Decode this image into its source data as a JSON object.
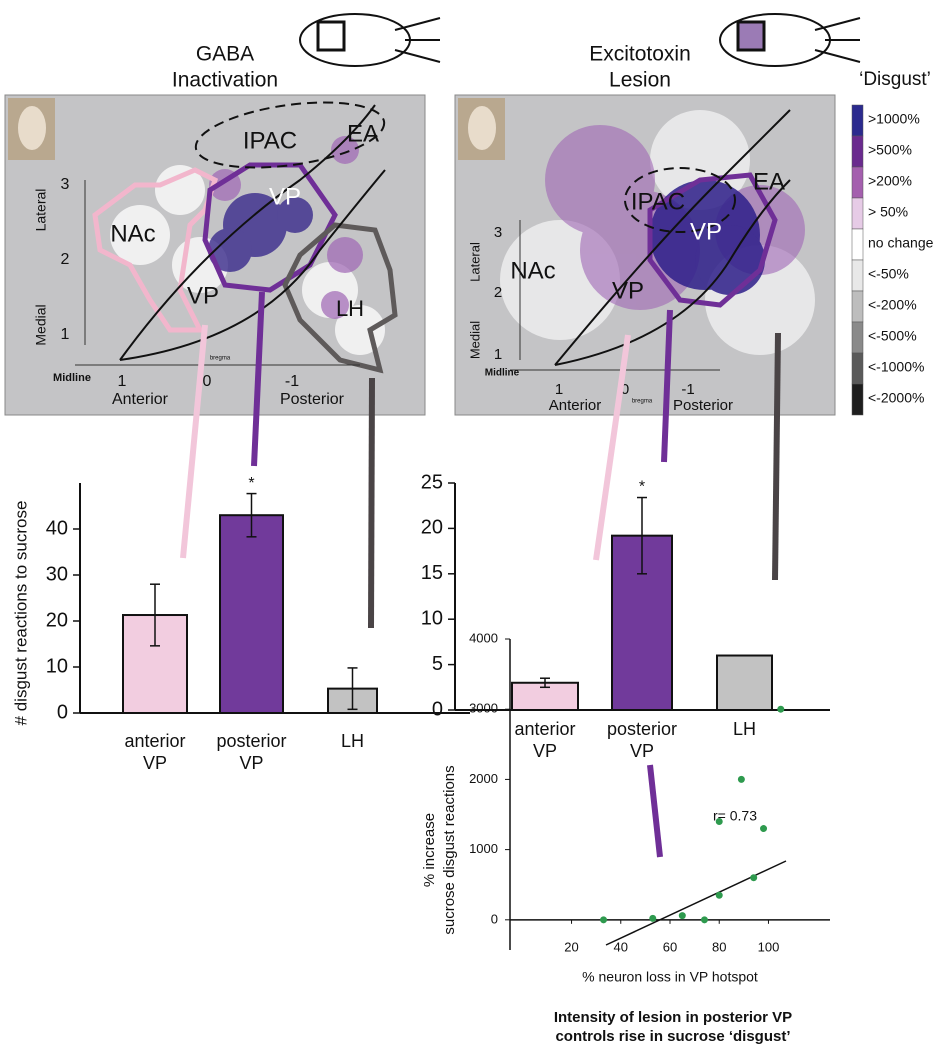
{
  "maps": [
    {
      "title": [
        "GABA",
        "Inactivation"
      ],
      "regions": [
        "IPAC",
        "EA",
        "VP",
        "NAc",
        "VP",
        "LH"
      ],
      "lateral_ticks": [
        3,
        2,
        1
      ],
      "ap_ticks": [
        1,
        0,
        -1
      ],
      "lateral_label": "Lateral",
      "medial_label": "Medial",
      "midline_label": "Midline",
      "bregma": "bregma",
      "anterior_label": "Anterior",
      "posterior_label": "Posterior"
    },
    {
      "title": [
        "Excitotoxin",
        "Lesion"
      ],
      "regions": [
        "IPAC",
        "EA",
        "VP",
        "NAc",
        "VP"
      ],
      "lateral_ticks": [
        3,
        2,
        1
      ],
      "ap_ticks": [
        1,
        0,
        -1
      ],
      "lateral_label": "Lateral",
      "medial_label": "Medial",
      "midline_label": "Midline",
      "bregma": "bregma",
      "anterior_label": "Anterior",
      "posterior_label": "Posterior"
    }
  ],
  "legend": {
    "title": "‘Disgust’",
    "labels": [
      ">1000%",
      ">500%",
      ">200%",
      "> 50%",
      "no change",
      "<-50%",
      "<-200%",
      "<-500%",
      "<-1000%",
      "<-2000%"
    ],
    "colors": [
      "#2b2a8e",
      "#6a2a8e",
      "#a45fae",
      "#e6cbe6",
      "#ffffff",
      "#e8e8e8",
      "#bdbdbd",
      "#8a8a8a",
      "#5a5a5a",
      "#1e1e1e"
    ]
  },
  "chart_data": [
    {
      "type": "bar",
      "ylabel": "# disgust reactions to sucrose",
      "categories": [
        "anterior VP",
        "posterior VP",
        "LH"
      ],
      "values": [
        21.3,
        43,
        5.3
      ],
      "errors": [
        6.7,
        4.7,
        4.5
      ],
      "colors": [
        "#f2cde0",
        "#713a9b",
        "#c2c2c2"
      ],
      "ylim": [
        0,
        50
      ],
      "yticks": [
        0,
        10,
        20,
        30,
        40
      ],
      "significance_marker": "*"
    },
    {
      "type": "bar",
      "categories": [
        "anterior VP",
        "posterior VP",
        "LH"
      ],
      "values": [
        3,
        19.2,
        6
      ],
      "errors": [
        0.5,
        4.2,
        null
      ],
      "colors": [
        "#f2cde0",
        "#713a9b",
        "#c2c2c2"
      ],
      "ylim": [
        0,
        25
      ],
      "yticks": [
        0,
        5,
        10,
        15,
        20,
        25
      ],
      "significance_marker": "*"
    },
    {
      "type": "scatter",
      "ylabel": [
        "% increase",
        "sucrose disgust reactions"
      ],
      "xlabel": "% neuron loss in VP hotspot",
      "annotation": "r= 0.73",
      "x": [
        33,
        53,
        65,
        74,
        80,
        80,
        89,
        94,
        98,
        105
      ],
      "values": [
        0,
        20,
        60,
        0,
        350,
        1400,
        2000,
        600,
        1300,
        3000
      ],
      "color": "#2e9a4e",
      "xlim": [
        -5,
        125
      ],
      "ylim": [
        -430,
        4000
      ],
      "xticks": [
        20,
        40,
        60,
        80,
        100
      ],
      "yticks": [
        0,
        1000,
        2000,
        3000,
        4000
      ]
    }
  ],
  "caption": [
    "Intensity of lesion in posterior VP",
    "controls rise in sucrose ‘disgust’"
  ]
}
